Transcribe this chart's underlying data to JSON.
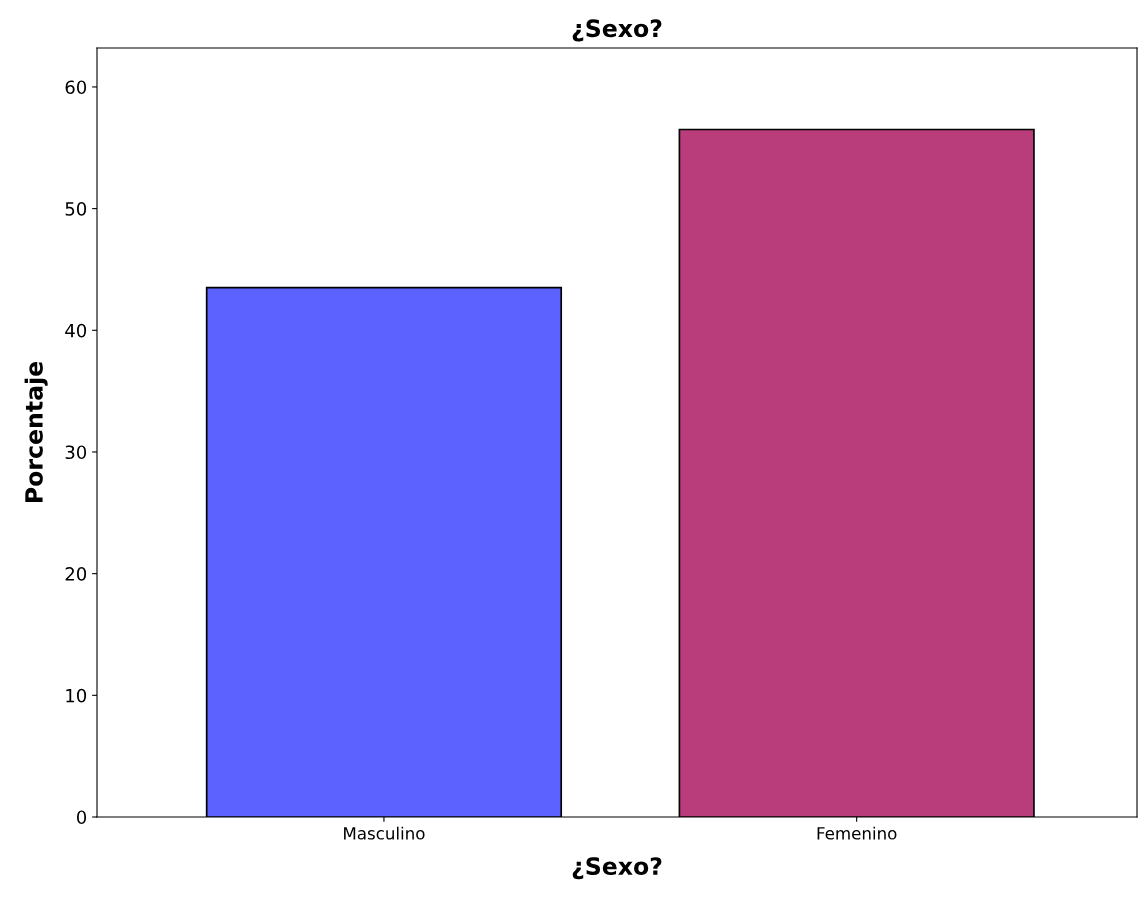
{
  "chart_data": {
    "type": "bar",
    "title": "¿Sexo?",
    "xlabel": "¿Sexo?",
    "ylabel": "Porcentaje",
    "categories": [
      "Masculino",
      "Femenino"
    ],
    "values": [
      43.5,
      56.5
    ],
    "colors": [
      "#5c62ff",
      "#b93d7b"
    ],
    "ylim": [
      0,
      63.2
    ],
    "yticks": [
      0,
      10,
      20,
      30,
      40,
      50,
      60
    ],
    "grid": false
  }
}
